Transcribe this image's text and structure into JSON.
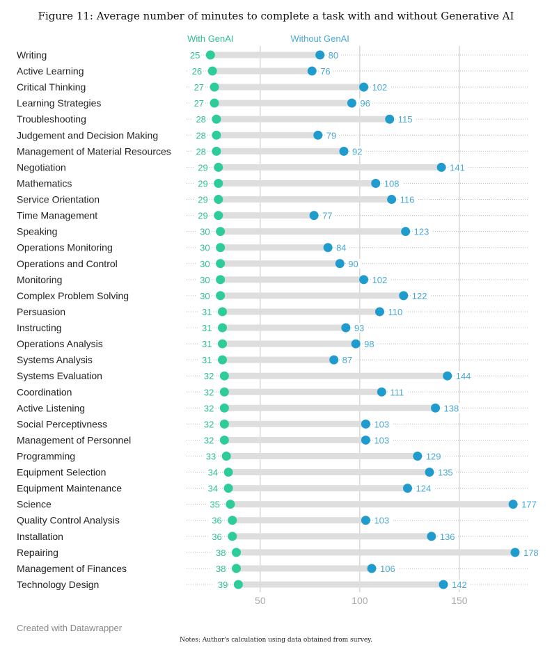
{
  "figure_title": "Figure 11: Average number of minutes to complete a task with and without Generative AI",
  "credit": "Created with Datawrapper",
  "notes": "Notes: Author's calculation using data obtained from survey.",
  "colors": {
    "with_genai": "#2ecc9a",
    "without_genai": "#1f9ccd",
    "with_label": "#2ebf8f",
    "without_label": "#4aa8d4",
    "bar": "#dedede"
  },
  "chart_data": {
    "type": "dot-range",
    "title": "Figure 11: Average number of minutes to complete a task with and without Generative AI",
    "legend": [
      "With GenAI",
      "Without GenAI"
    ],
    "xlim": [
      13,
      185
    ],
    "xticks": [
      50,
      100,
      150
    ],
    "grid": true,
    "categories": [
      "Writing",
      "Active Learning",
      "Critical Thinking",
      "Learning Strategies",
      "Troubleshooting",
      "Judgement and Decision Making",
      "Management of Material Resources",
      "Negotiation",
      "Mathematics",
      "Service Orientation",
      "Time Management",
      "Speaking",
      "Operations Monitoring",
      "Operations and Control",
      "Monitoring",
      "Complex Problem Solving",
      "Persuasion",
      "Instructing",
      "Operations Analysis",
      "Systems Analysis",
      "Systems Evaluation",
      "Coordination",
      "Active Listening",
      "Social Perceptivness",
      "Management of Personnel",
      "Programming",
      "Equipment Selection",
      "Equipment Maintenance",
      "Science",
      "Quality Control Analysis",
      "Installation",
      "Repairing",
      "Management of Finances",
      "Technology Design"
    ],
    "series": [
      {
        "name": "With GenAI",
        "values": [
          25,
          26,
          27,
          27,
          28,
          28,
          28,
          29,
          29,
          29,
          29,
          30,
          30,
          30,
          30,
          30,
          31,
          31,
          31,
          31,
          32,
          32,
          32,
          32,
          32,
          33,
          34,
          34,
          35,
          36,
          36,
          38,
          38,
          39
        ]
      },
      {
        "name": "Without GenAI",
        "values": [
          80,
          76,
          102,
          96,
          115,
          79,
          92,
          141,
          108,
          116,
          77,
          123,
          84,
          90,
          102,
          122,
          110,
          93,
          98,
          87,
          144,
          111,
          138,
          103,
          103,
          129,
          135,
          124,
          177,
          103,
          136,
          178,
          106,
          142
        ]
      }
    ]
  }
}
